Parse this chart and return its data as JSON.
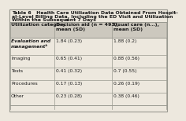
{
  "title1": "Table 6   Health Care Utilization Data Obtained From Hospit-",
  "title2": "al-Level Billing Data, Including the ED Visit and Utilization",
  "title3": "Within the Subsequent 7 Days",
  "title_super": "a",
  "col0_header": "Utilization category",
  "col1_header": "Decision aid (n = 493),\nmean (SD)",
  "col2_header": "Usual care (n…),\nmean (SD)",
  "rows": [
    [
      "Evaluation and\nmanagementᵇ",
      "1.84 (0.23)",
      "1.88 (0.2)"
    ],
    [
      "Imaging",
      "0.65 (0.41)",
      "0.88 (0.56)"
    ],
    [
      "Tests",
      "0.41 (0.32)",
      "0.7 (0.55)"
    ],
    [
      "Procedures",
      "0.17 (0.13)",
      "0.26 (0.19)"
    ],
    [
      "Other",
      "0.23 (0.28)",
      "0.38 (0.46)"
    ]
  ],
  "bg_color": "#ede8de",
  "header_bg": "#ccc8be",
  "row_bg": "#ede8de",
  "border_color": "#999990",
  "text_color": "#1a1a1a",
  "font_size": 4.5
}
